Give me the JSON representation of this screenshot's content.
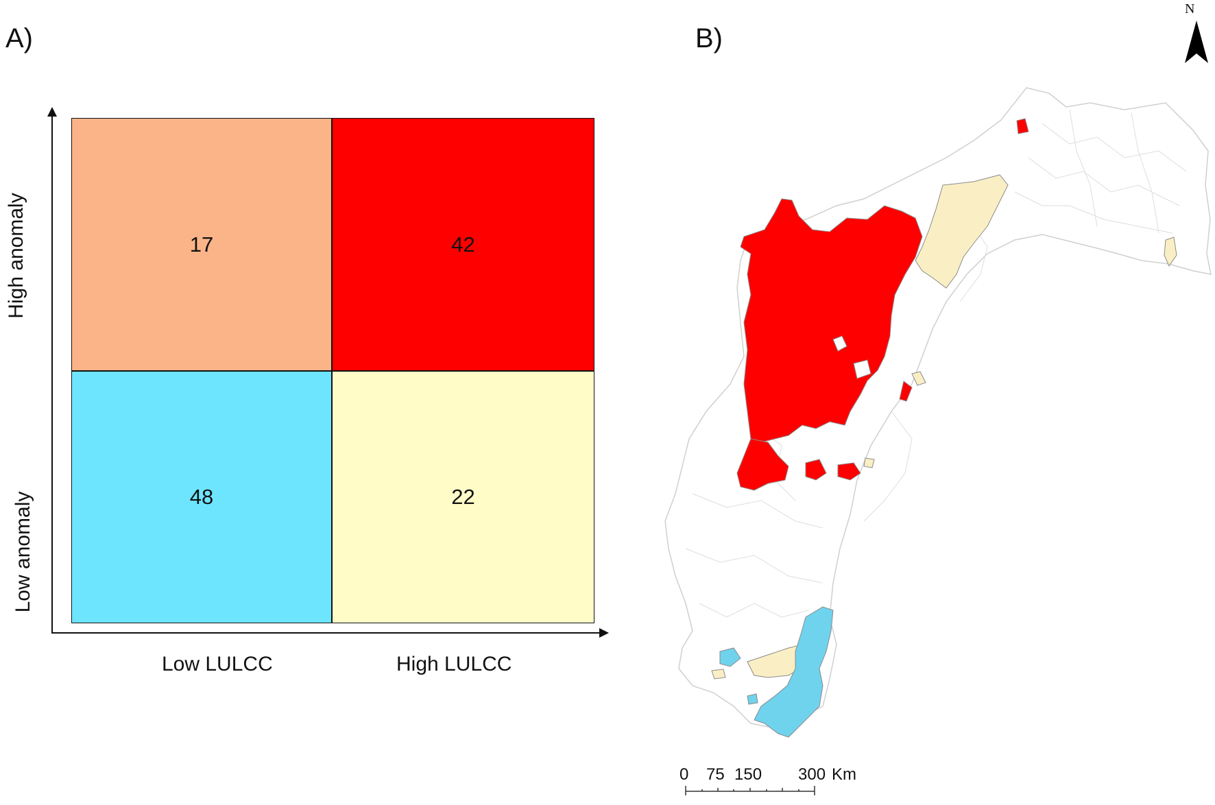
{
  "panels": {
    "a_label": "A)",
    "b_label": "B)"
  },
  "chart_data": {
    "type": "table",
    "title": "",
    "rows": [
      "High anomaly",
      "Low anomaly"
    ],
    "columns": [
      "Low LULCC",
      "High LULCC"
    ],
    "values": [
      [
        17,
        42
      ],
      [
        48,
        22
      ]
    ],
    "colors": [
      [
        "#FAB488",
        "#FF0000"
      ],
      [
        "#6EE5FF",
        "#FFFCC8"
      ]
    ]
  },
  "cells": {
    "high_low": "17",
    "high_high": "42",
    "low_low": "48",
    "low_high": "22"
  },
  "axes": {
    "y_high": "High anomaly",
    "y_low": "Low anomaly",
    "x_low": "Low LULCC",
    "x_high": "High LULCC"
  },
  "map": {
    "north_label": "N",
    "scale_ticks": [
      "0",
      "75",
      "150",
      "300"
    ],
    "scale_unit": "Km",
    "legend_colors": {
      "high_high": "#FF0000",
      "low_high": "#FAEFC4",
      "low_low": "#6FD3EE",
      "other": "#FFFFFF"
    }
  }
}
